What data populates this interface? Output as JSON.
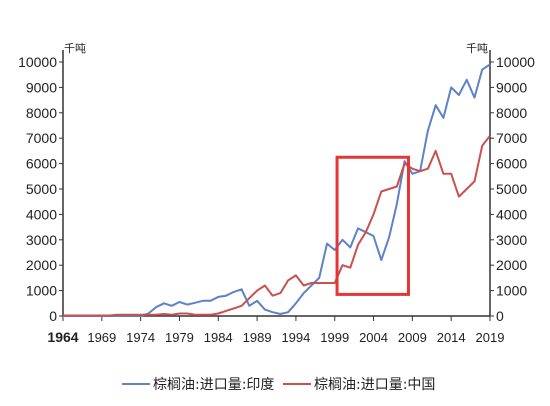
{
  "chart_data": {
    "type": "line",
    "title": "",
    "xlabel": "",
    "ylabel_left": "千吨",
    "ylabel_right": "千吨",
    "ylim": [
      0,
      10000
    ],
    "xlim": [
      1964,
      2019
    ],
    "yticks": [
      0,
      1000,
      2000,
      3000,
      4000,
      5000,
      6000,
      7000,
      8000,
      9000,
      10000
    ],
    "xticks": [
      1964,
      1969,
      1974,
      1979,
      1984,
      1989,
      1994,
      1999,
      2004,
      2009,
      2014,
      2019
    ],
    "grid": false,
    "legend_position": "bottom",
    "highlight_box": {
      "x_range": [
        1999.3,
        2008.5
      ],
      "y_range": [
        850,
        6250
      ],
      "color": "#e63535"
    },
    "series": [
      {
        "name": "棕榈油:进口量:印度",
        "color": "#5b83c6",
        "x": [
          1964,
          1965,
          1966,
          1967,
          1968,
          1969,
          1970,
          1971,
          1972,
          1973,
          1974,
          1975,
          1976,
          1977,
          1978,
          1979,
          1980,
          1981,
          1982,
          1983,
          1984,
          1985,
          1986,
          1987,
          1988,
          1989,
          1990,
          1991,
          1992,
          1993,
          1994,
          1995,
          1996,
          1997,
          1998,
          1999,
          2000,
          2001,
          2002,
          2003,
          2004,
          2005,
          2006,
          2007,
          2008,
          2009,
          2010,
          2011,
          2012,
          2013,
          2014,
          2015,
          2016,
          2017,
          2018,
          2019
        ],
        "values": [
          0,
          0,
          0,
          0,
          0,
          0,
          0,
          0,
          0,
          0,
          0,
          100,
          350,
          500,
          400,
          550,
          450,
          520,
          600,
          600,
          750,
          800,
          950,
          1050,
          400,
          600,
          250,
          150,
          80,
          150,
          500,
          900,
          1200,
          1500,
          2850,
          2600,
          3000,
          2700,
          3450,
          3300,
          3150,
          2200,
          3100,
          4400,
          6100,
          5600,
          5700,
          7300,
          8300,
          7800,
          9000,
          8700,
          9300,
          8600,
          9700,
          9900
        ]
      },
      {
        "name": "棕榈油:进口量:中国",
        "color": "#c9504f",
        "x": [
          1964,
          1965,
          1966,
          1967,
          1968,
          1969,
          1970,
          1971,
          1972,
          1973,
          1974,
          1975,
          1976,
          1977,
          1978,
          1979,
          1980,
          1981,
          1982,
          1983,
          1984,
          1985,
          1986,
          1987,
          1988,
          1989,
          1990,
          1991,
          1992,
          1993,
          1994,
          1995,
          1996,
          1997,
          1998,
          1999,
          2000,
          2001,
          2002,
          2003,
          2004,
          2005,
          2006,
          2007,
          2008,
          2009,
          2010,
          2011,
          2012,
          2013,
          2014,
          2015,
          2016,
          2017,
          2018,
          2019
        ],
        "values": [
          20,
          20,
          20,
          20,
          20,
          20,
          20,
          50,
          50,
          50,
          50,
          50,
          50,
          80,
          50,
          100,
          100,
          50,
          50,
          50,
          100,
          200,
          300,
          400,
          700,
          1000,
          1200,
          800,
          900,
          1400,
          1600,
          1200,
          1300,
          1300,
          1300,
          1300,
          2000,
          1900,
          2800,
          3300,
          4000,
          4900,
          5000,
          5100,
          6000,
          5800,
          5700,
          5800,
          6500,
          5600,
          5600,
          4700,
          5000,
          5300,
          6700,
          7100
        ]
      }
    ]
  }
}
